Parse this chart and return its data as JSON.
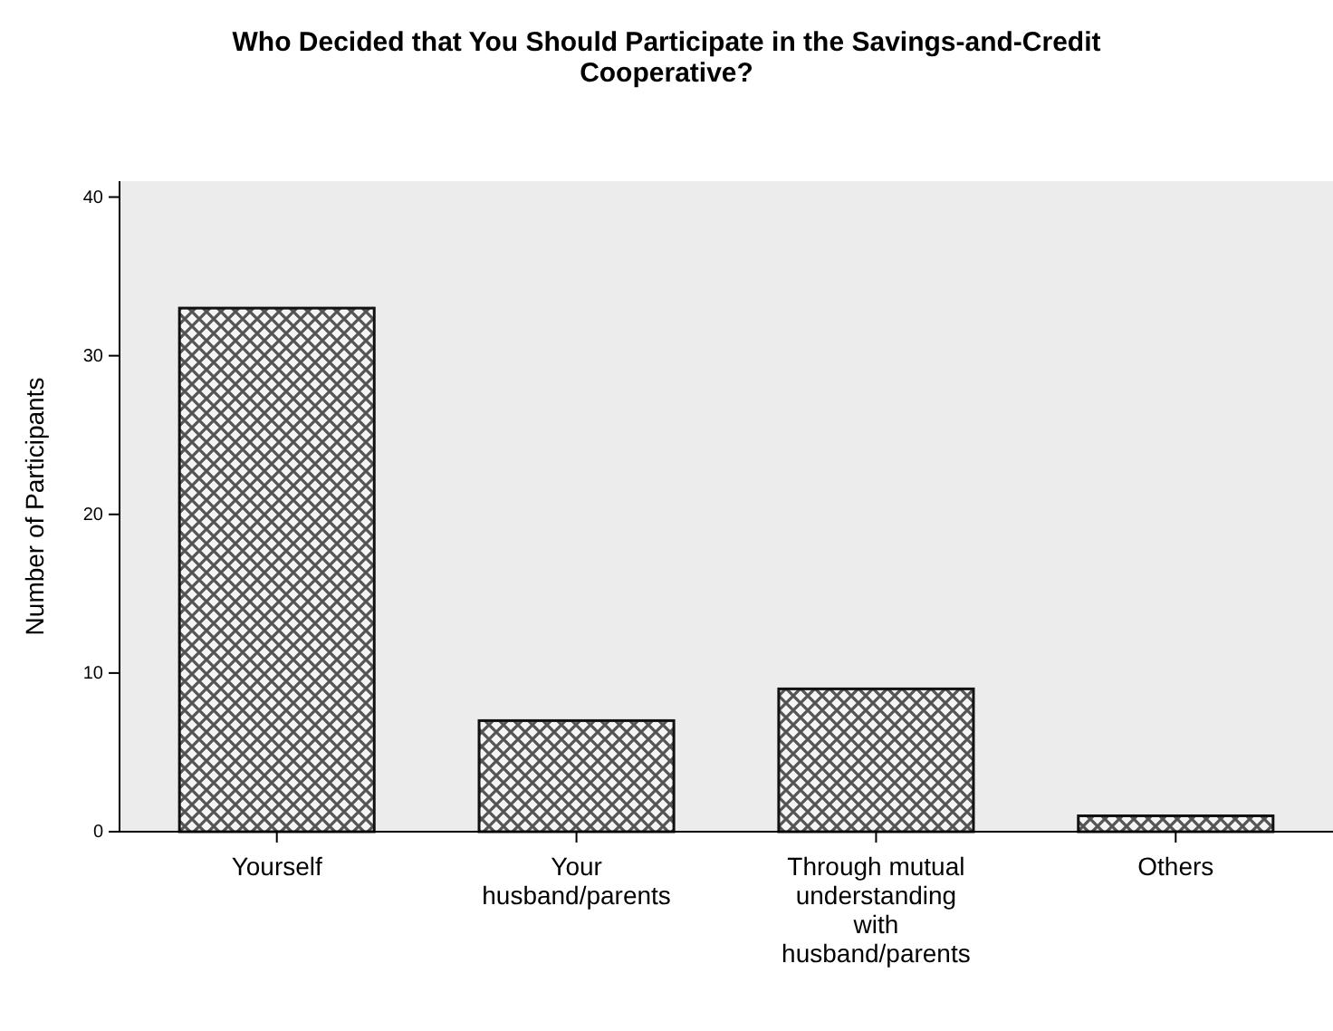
{
  "chart_data": {
    "type": "bar",
    "title": "Who Decided that You Should Participate in the Savings-and-Credit Cooperative?",
    "ylabel": "Number of Participants",
    "categories": [
      "Yourself",
      "Your husband/parents",
      "Through mutual understanding with husband/parents",
      "Others"
    ],
    "values": [
      33,
      7,
      9,
      1
    ],
    "color": "#111111",
    "ylim": [
      0,
      41
    ],
    "yticks": [
      0,
      10,
      20,
      30,
      40
    ],
    "grid": false
  }
}
